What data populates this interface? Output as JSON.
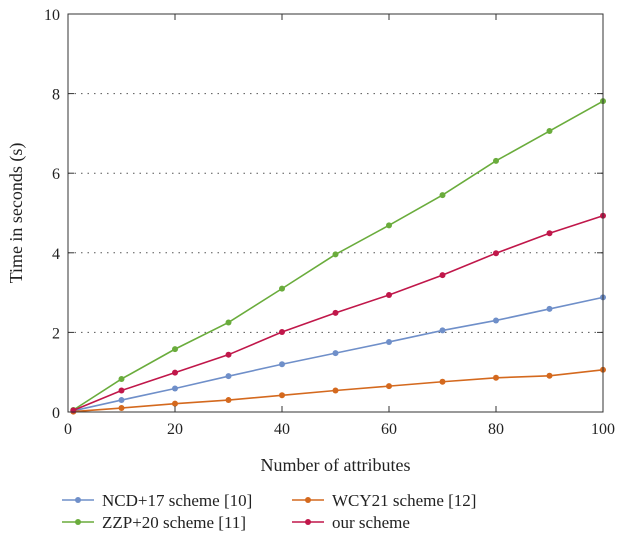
{
  "chart_data": {
    "type": "line",
    "xlabel": "Number of attributes",
    "ylabel": "Time in seconds (s)",
    "xlim": [
      0,
      100
    ],
    "ylim": [
      0,
      10
    ],
    "x_ticks": [
      "0",
      "20",
      "40",
      "60",
      "80",
      "100"
    ],
    "y_ticks": [
      "0",
      "2",
      "4",
      "6",
      "8",
      "10"
    ],
    "grid": "horizontal dotted",
    "legend_position": "bottom, two columns",
    "x": [
      1,
      10,
      20,
      30,
      40,
      50,
      60,
      70,
      80,
      90,
      100
    ],
    "series": [
      {
        "name": "NCD+17 scheme [10]",
        "color": "#6f8fc9",
        "values": [
          0.03,
          0.3,
          0.59,
          0.9,
          1.2,
          1.48,
          1.76,
          2.05,
          2.3,
          2.59,
          2.88
        ]
      },
      {
        "name": "WCY21 scheme [12]",
        "color": "#d4691e",
        "values": [
          0.01,
          0.1,
          0.21,
          0.3,
          0.42,
          0.54,
          0.65,
          0.76,
          0.86,
          0.91,
          1.06
        ]
      },
      {
        "name": "ZZP+20 scheme [11]",
        "color": "#6aac3c",
        "values": [
          0.05,
          0.83,
          1.58,
          2.25,
          3.1,
          3.96,
          4.69,
          5.45,
          6.31,
          7.06,
          7.81
        ]
      },
      {
        "name": "our scheme",
        "color": "#c0174a",
        "values": [
          0.04,
          0.54,
          0.99,
          1.44,
          2.01,
          2.49,
          2.94,
          3.44,
          3.99,
          4.49,
          4.93
        ]
      }
    ]
  }
}
